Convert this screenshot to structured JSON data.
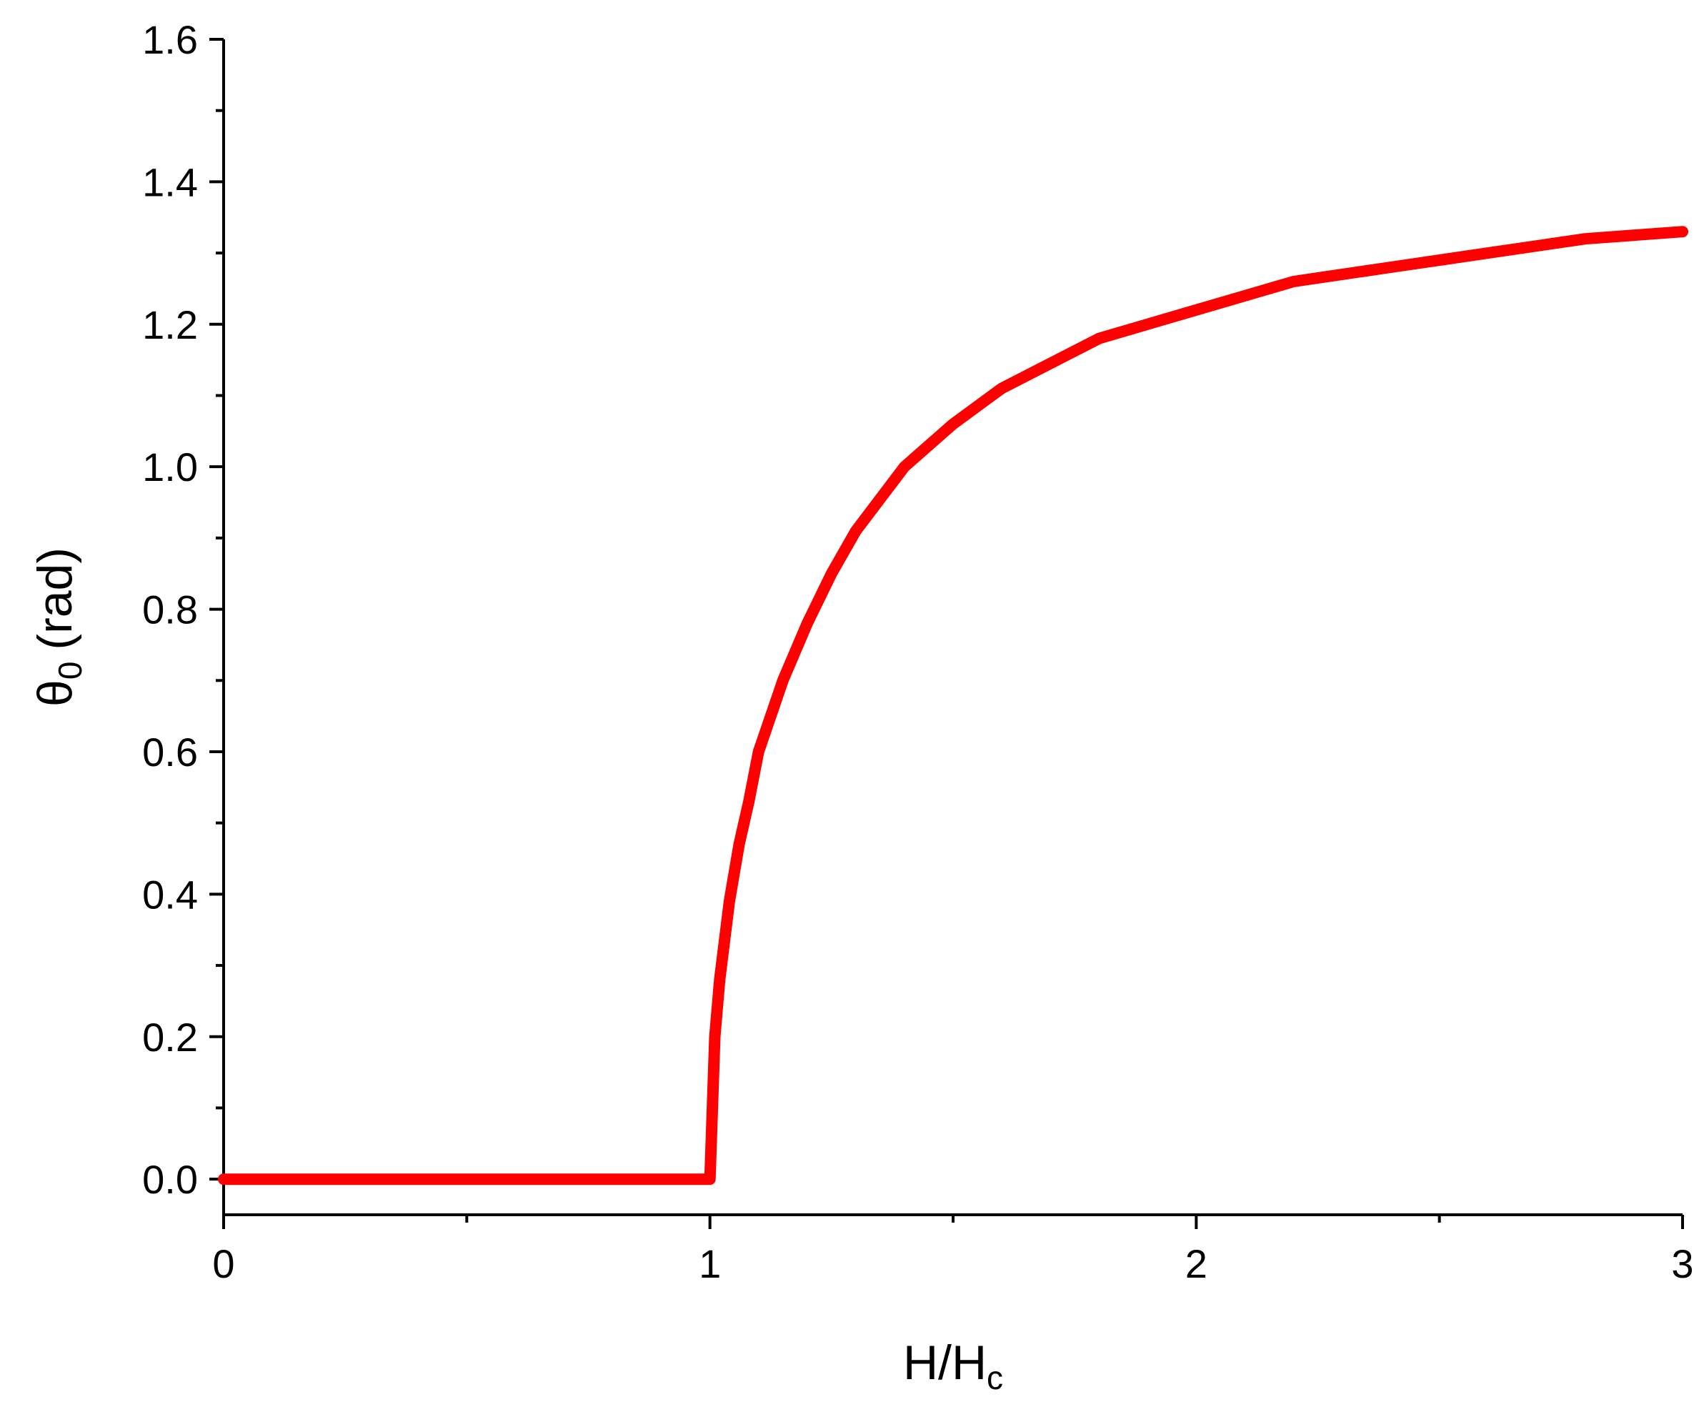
{
  "chart_data": {
    "type": "line",
    "xlabel": {
      "main": "H/H",
      "sub": "c"
    },
    "ylabel": {
      "main": "θ",
      "sub": "0",
      "unit": "(rad)"
    },
    "xlim": [
      0,
      3
    ],
    "ylim": [
      -0.05,
      1.6
    ],
    "x_ticks": [
      0,
      1,
      2,
      3
    ],
    "x_tick_labels": [
      "0",
      "1",
      "2",
      "3"
    ],
    "x_minor_ticks": [
      0.5,
      1.5,
      2.5
    ],
    "y_ticks": [
      0,
      0.2,
      0.4,
      0.6,
      0.8,
      1.0,
      1.2,
      1.4,
      1.6
    ],
    "y_tick_labels": [
      "0.0",
      "0.2",
      "0.4",
      "0.6",
      "0.8",
      "1.0",
      "1.2",
      "1.4",
      "1.6"
    ],
    "y_minor_ticks": [
      0.1,
      0.3,
      0.5,
      0.7,
      0.9,
      1.1,
      1.3,
      1.5
    ],
    "grid": false,
    "legend": "none",
    "series": [
      {
        "color": "#ff0000",
        "x": [
          0,
          0.5,
          1.0,
          1.005,
          1.01,
          1.02,
          1.04,
          1.06,
          1.08,
          1.1,
          1.15,
          1.2,
          1.25,
          1.3,
          1.4,
          1.5,
          1.6,
          1.8,
          2.0,
          2.2,
          2.4,
          2.6,
          2.8,
          3.0
        ],
        "y": [
          0,
          0,
          0,
          0.1,
          0.2,
          0.28,
          0.39,
          0.47,
          0.53,
          0.6,
          0.7,
          0.78,
          0.85,
          0.91,
          1.0,
          1.06,
          1.11,
          1.18,
          1.22,
          1.26,
          1.28,
          1.3,
          1.32,
          1.33
        ]
      }
    ]
  }
}
